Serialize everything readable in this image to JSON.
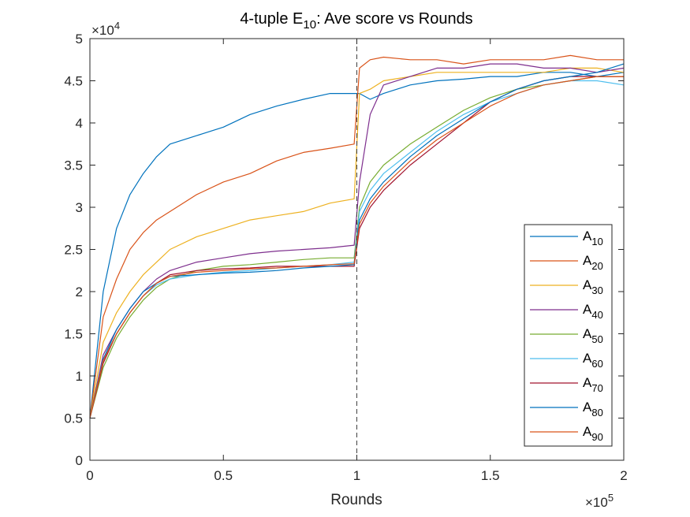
{
  "chart_data": {
    "type": "line",
    "title": {
      "prefix": "4-tuple E",
      "subscript": "10",
      "suffix": ": Ave score vs Rounds"
    },
    "xlabel": "Rounds",
    "ylabel": "",
    "x_multiplier": {
      "base": "×10",
      "exponent": "5"
    },
    "y_multiplier": {
      "base": "×10",
      "exponent": "4"
    },
    "xlim": [
      0,
      200000
    ],
    "ylim": [
      0,
      50000
    ],
    "x_ticks": [
      0,
      50000,
      100000,
      150000,
      200000
    ],
    "x_tick_labels": [
      "0",
      "0.5",
      "1",
      "1.5",
      "2"
    ],
    "y_ticks": [
      0,
      5000,
      10000,
      15000,
      20000,
      25000,
      30000,
      35000,
      40000,
      45000,
      50000
    ],
    "y_tick_labels": [
      "0",
      "0.5",
      "1",
      "1.5",
      "2",
      "2.5",
      "3",
      "3.5",
      "4",
      "4.5",
      "5"
    ],
    "grid": false,
    "legend_position": "bottom-right",
    "reference_line": {
      "x": 100000,
      "style": "dashed"
    },
    "x": [
      0,
      5000,
      10000,
      15000,
      20000,
      25000,
      30000,
      40000,
      50000,
      60000,
      70000,
      80000,
      90000,
      99000,
      101000,
      105000,
      110000,
      120000,
      130000,
      140000,
      150000,
      160000,
      170000,
      180000,
      190000,
      200000
    ],
    "series": [
      {
        "name": "A",
        "sub": "10",
        "color": "#0072BD",
        "values": [
          5000,
          20000,
          27500,
          31500,
          34000,
          36000,
          37500,
          38500,
          39500,
          41000,
          42000,
          42800,
          43500,
          43500,
          43500,
          42800,
          43500,
          44500,
          45000,
          45200,
          45500,
          45500,
          46000,
          46000,
          45500,
          46000
        ]
      },
      {
        "name": "A",
        "sub": "20",
        "color": "#D95319",
        "values": [
          5000,
          17000,
          21500,
          25000,
          27000,
          28500,
          29500,
          31500,
          33000,
          34000,
          35500,
          36500,
          37000,
          37500,
          46500,
          47500,
          47800,
          47500,
          47500,
          47000,
          47500,
          47500,
          47500,
          48000,
          47500,
          47500
        ]
      },
      {
        "name": "A",
        "sub": "30",
        "color": "#EDB120",
        "values": [
          5000,
          14000,
          17500,
          20000,
          22000,
          23500,
          25000,
          26500,
          27500,
          28500,
          29000,
          29500,
          30500,
          31000,
          43500,
          44000,
          45000,
          45500,
          46000,
          46000,
          46000,
          46000,
          46000,
          46500,
          46500,
          46000
        ]
      },
      {
        "name": "A",
        "sub": "40",
        "color": "#7E2F8E",
        "values": [
          5000,
          12500,
          15500,
          18000,
          20000,
          21500,
          22500,
          23500,
          24000,
          24500,
          24800,
          25000,
          25200,
          25500,
          33000,
          41000,
          44500,
          45500,
          46500,
          46500,
          47000,
          47000,
          46500,
          46500,
          46000,
          46500
        ]
      },
      {
        "name": "A",
        "sub": "50",
        "color": "#77AC30",
        "values": [
          5000,
          11000,
          14500,
          17000,
          19000,
          20500,
          21500,
          22500,
          23000,
          23200,
          23500,
          23800,
          24000,
          24000,
          30000,
          33000,
          35000,
          37500,
          39500,
          41500,
          43000,
          44000,
          44500,
          45000,
          45500,
          45500
        ]
      },
      {
        "name": "A",
        "sub": "60",
        "color": "#4DBEEE",
        "values": [
          5000,
          12000,
          15000,
          17500,
          19500,
          20800,
          21500,
          22000,
          22300,
          22500,
          22800,
          23000,
          23200,
          23500,
          29500,
          32000,
          34000,
          36500,
          39000,
          41000,
          42500,
          43500,
          44500,
          45000,
          45000,
          44500
        ]
      },
      {
        "name": "A",
        "sub": "70",
        "color": "#A2142F",
        "values": [
          5000,
          11500,
          15000,
          17500,
          19500,
          21000,
          22000,
          22500,
          22700,
          22800,
          23000,
          23000,
          23000,
          23000,
          27500,
          30000,
          32000,
          35000,
          37500,
          40000,
          42500,
          44000,
          45000,
          45500,
          45500,
          45500
        ]
      },
      {
        "name": "A",
        "sub": "80",
        "color": "#0072BD",
        "values": [
          5000,
          12000,
          15500,
          18000,
          20000,
          21000,
          21800,
          22000,
          22200,
          22300,
          22500,
          22800,
          23000,
          23200,
          28500,
          31000,
          33000,
          36000,
          38500,
          40500,
          42500,
          44000,
          45000,
          45500,
          46000,
          47000
        ]
      },
      {
        "name": "A",
        "sub": "90",
        "color": "#D95319",
        "values": [
          5000,
          11800,
          15000,
          17500,
          19500,
          21000,
          21800,
          22300,
          22500,
          22700,
          22800,
          23000,
          23200,
          23300,
          28000,
          30500,
          32500,
          35500,
          38000,
          40000,
          42000,
          43500,
          44500,
          45000,
          45500,
          45500
        ]
      }
    ]
  }
}
